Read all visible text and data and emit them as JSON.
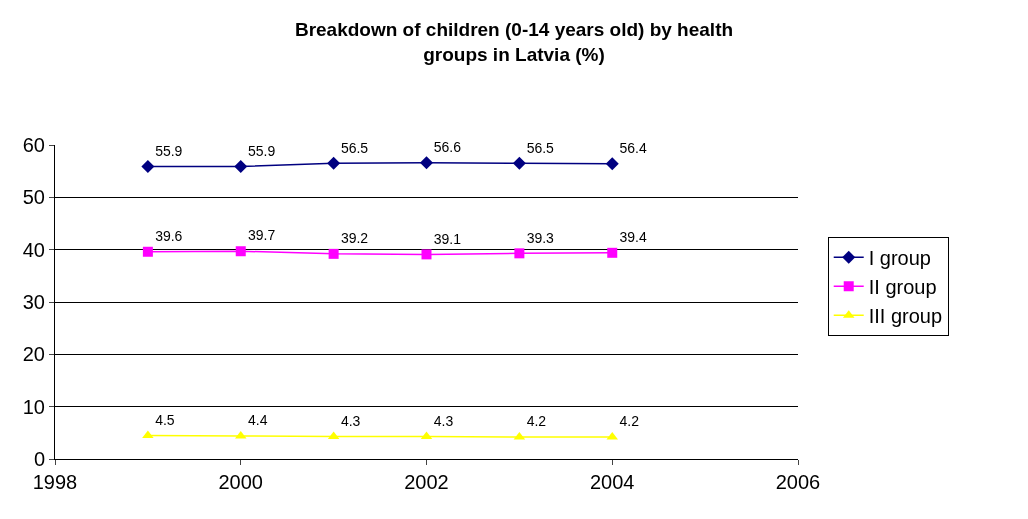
{
  "chart_data": {
    "type": "line",
    "title": "Breakdown of children (0-14 years old) by health groups in Latvia (%)",
    "x": [
      1999,
      2000,
      2001,
      2002,
      2003,
      2004
    ],
    "series": [
      {
        "name": "I group",
        "color": "#000080",
        "marker": "diamond",
        "values": [
          55.9,
          55.9,
          56.5,
          56.6,
          56.5,
          56.4
        ]
      },
      {
        "name": "II group",
        "color": "#ff00ff",
        "marker": "square",
        "values": [
          39.6,
          39.7,
          39.2,
          39.1,
          39.3,
          39.4
        ]
      },
      {
        "name": "III group",
        "color": "#ffff00",
        "marker": "triangle",
        "values": [
          4.5,
          4.4,
          4.3,
          4.3,
          4.2,
          4.2
        ]
      }
    ],
    "xlim": [
      1998,
      2006
    ],
    "xticks": [
      1998,
      2000,
      2002,
      2004,
      2006
    ],
    "ylim": [
      0,
      60
    ],
    "yticks": [
      0,
      10,
      20,
      30,
      40,
      50,
      60
    ],
    "grid": "y",
    "legend": "right",
    "data_labels": true
  }
}
